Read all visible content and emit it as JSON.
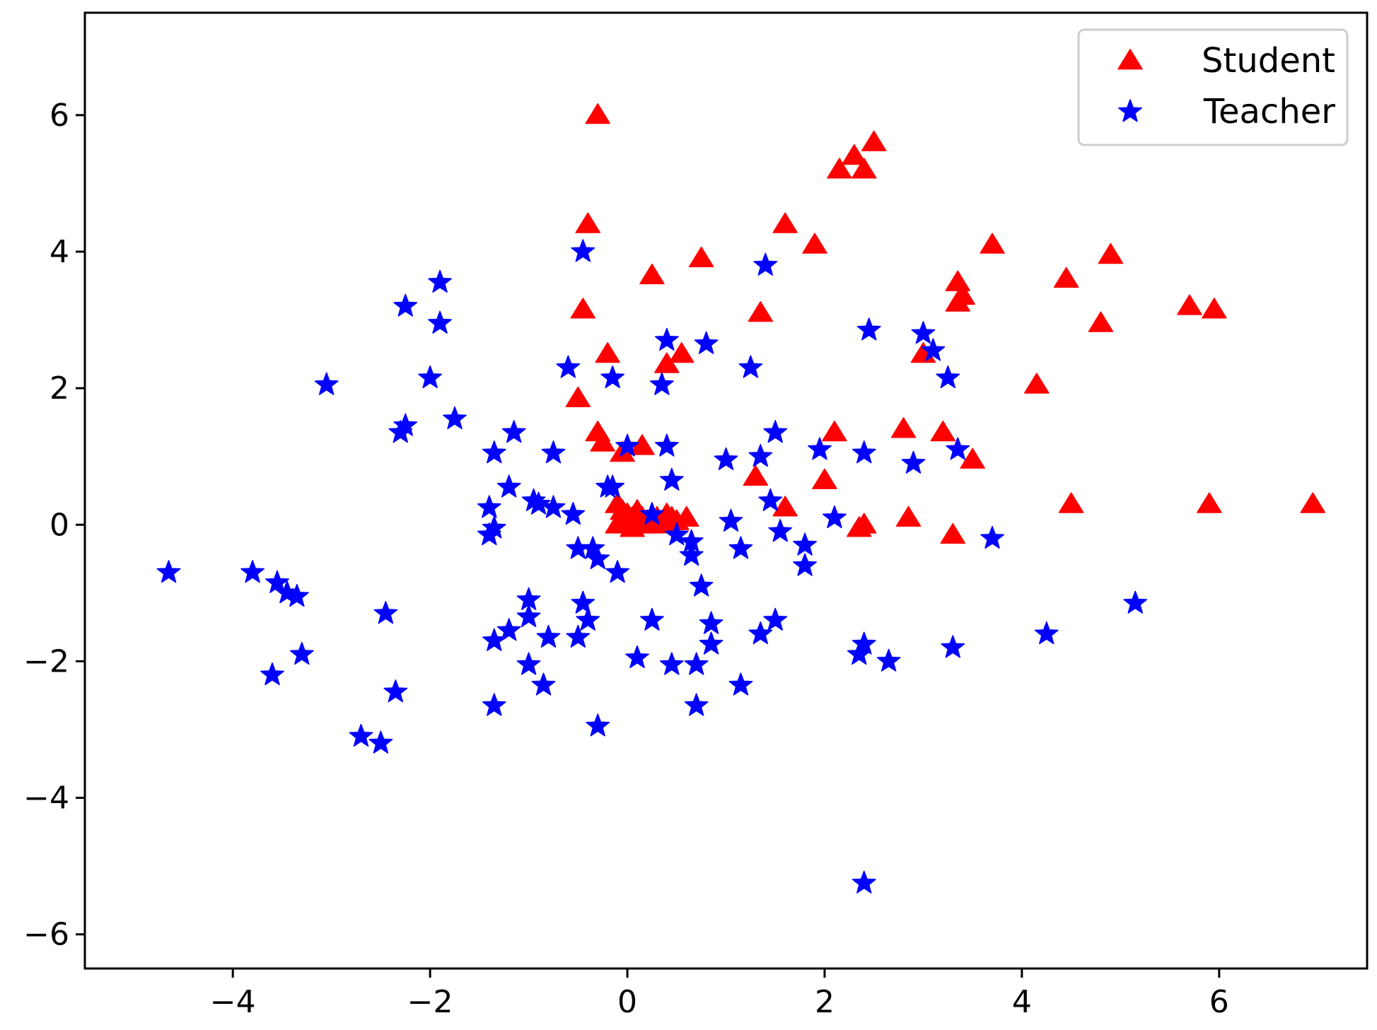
{
  "chart_data": {
    "type": "scatter",
    "title": "",
    "xlabel": "",
    "ylabel": "",
    "xlim": [
      -5.5,
      7.5
    ],
    "ylim": [
      -6.5,
      7.5
    ],
    "xticks": [
      -4,
      -2,
      0,
      2,
      4,
      6
    ],
    "yticks": [
      -6,
      -4,
      -2,
      0,
      2,
      4,
      6
    ],
    "xtick_labels": [
      "−4",
      "−2",
      "0",
      "2",
      "4",
      "6"
    ],
    "ytick_labels": [
      "−6",
      "−4",
      "−2",
      "0",
      "2",
      "4",
      "6"
    ],
    "grid": false,
    "legend_position": "top-right",
    "series": [
      {
        "name": "Student",
        "marker": "triangle",
        "color": "#ff0000",
        "points": [
          [
            -0.3,
            6.0
          ],
          [
            2.5,
            5.6
          ],
          [
            2.3,
            5.4
          ],
          [
            2.4,
            5.2
          ],
          [
            2.15,
            5.2
          ],
          [
            -0.4,
            4.4
          ],
          [
            1.6,
            4.4
          ],
          [
            1.9,
            4.1
          ],
          [
            0.75,
            3.9
          ],
          [
            3.7,
            4.1
          ],
          [
            4.9,
            3.95
          ],
          [
            0.25,
            3.65
          ],
          [
            4.45,
            3.6
          ],
          [
            3.35,
            3.55
          ],
          [
            3.4,
            3.35
          ],
          [
            3.35,
            3.25
          ],
          [
            5.7,
            3.2
          ],
          [
            5.95,
            3.15
          ],
          [
            -0.45,
            3.15
          ],
          [
            1.35,
            3.1
          ],
          [
            4.8,
            2.95
          ],
          [
            -0.2,
            2.5
          ],
          [
            0.55,
            2.5
          ],
          [
            0.4,
            2.35
          ],
          [
            3.0,
            2.5
          ],
          [
            4.15,
            2.05
          ],
          [
            -0.5,
            1.85
          ],
          [
            -0.3,
            1.35
          ],
          [
            -0.25,
            1.2
          ],
          [
            2.1,
            1.35
          ],
          [
            2.8,
            1.4
          ],
          [
            3.2,
            1.35
          ],
          [
            0.15,
            1.15
          ],
          [
            -0.05,
            1.05
          ],
          [
            3.5,
            0.95
          ],
          [
            1.3,
            0.7
          ],
          [
            2.0,
            0.65
          ],
          [
            1.6,
            0.25
          ],
          [
            4.5,
            0.3
          ],
          [
            5.9,
            0.3
          ],
          [
            6.95,
            0.3
          ],
          [
            2.85,
            0.1
          ],
          [
            2.4,
            0.0
          ],
          [
            2.35,
            -0.05
          ],
          [
            3.3,
            -0.15
          ],
          [
            -0.1,
            0.3
          ],
          [
            -0.05,
            0.2
          ],
          [
            0.0,
            0.15
          ],
          [
            0.05,
            0.1
          ],
          [
            0.1,
            0.2
          ],
          [
            0.15,
            0.1
          ],
          [
            0.2,
            0.05
          ],
          [
            0.3,
            0.1
          ],
          [
            0.4,
            0.15
          ],
          [
            0.5,
            0.05
          ],
          [
            0.6,
            0.1
          ],
          [
            -0.1,
            0.0
          ],
          [
            0.0,
            0.0
          ],
          [
            0.05,
            -0.05
          ],
          [
            0.15,
            0.0
          ],
          [
            0.25,
            0.05
          ],
          [
            0.35,
            0.0
          ],
          [
            0.45,
            0.1
          ],
          [
            0.1,
            0.05
          ],
          [
            -0.05,
            0.1
          ]
        ]
      },
      {
        "name": "Teacher",
        "marker": "star",
        "color": "#0000ff",
        "points": [
          [
            -0.45,
            4.0
          ],
          [
            1.4,
            3.8
          ],
          [
            -1.9,
            3.55
          ],
          [
            -2.25,
            3.2
          ],
          [
            -1.9,
            2.95
          ],
          [
            2.45,
            2.85
          ],
          [
            3.0,
            2.8
          ],
          [
            0.4,
            2.7
          ],
          [
            0.8,
            2.65
          ],
          [
            3.1,
            2.55
          ],
          [
            -0.6,
            2.3
          ],
          [
            1.25,
            2.3
          ],
          [
            -2.0,
            2.15
          ],
          [
            -0.15,
            2.15
          ],
          [
            3.25,
            2.15
          ],
          [
            -3.05,
            2.05
          ],
          [
            0.35,
            2.05
          ],
          [
            -1.75,
            1.55
          ],
          [
            -2.25,
            1.45
          ],
          [
            -2.3,
            1.35
          ],
          [
            -1.15,
            1.35
          ],
          [
            1.5,
            1.35
          ],
          [
            0.0,
            1.15
          ],
          [
            0.4,
            1.15
          ],
          [
            3.35,
            1.1
          ],
          [
            1.95,
            1.1
          ],
          [
            2.4,
            1.05
          ],
          [
            -1.35,
            1.05
          ],
          [
            -0.75,
            1.05
          ],
          [
            1.35,
            1.0
          ],
          [
            1.0,
            0.95
          ],
          [
            2.9,
            0.9
          ],
          [
            0.45,
            0.65
          ],
          [
            -0.2,
            0.55
          ],
          [
            -1.2,
            0.55
          ],
          [
            -0.15,
            0.55
          ],
          [
            -0.95,
            0.35
          ],
          [
            1.45,
            0.35
          ],
          [
            -0.9,
            0.3
          ],
          [
            -0.75,
            0.25
          ],
          [
            -1.4,
            0.25
          ],
          [
            0.25,
            0.15
          ],
          [
            -0.55,
            0.15
          ],
          [
            2.1,
            0.1
          ],
          [
            1.05,
            0.05
          ],
          [
            -1.35,
            -0.05
          ],
          [
            -1.4,
            -0.15
          ],
          [
            0.5,
            -0.15
          ],
          [
            1.55,
            -0.1
          ],
          [
            0.65,
            -0.25
          ],
          [
            3.7,
            -0.2
          ],
          [
            1.8,
            -0.3
          ],
          [
            -0.5,
            -0.35
          ],
          [
            -0.35,
            -0.35
          ],
          [
            1.15,
            -0.35
          ],
          [
            0.65,
            -0.45
          ],
          [
            -0.3,
            -0.5
          ],
          [
            1.8,
            -0.6
          ],
          [
            -0.1,
            -0.7
          ],
          [
            -4.65,
            -0.7
          ],
          [
            -3.8,
            -0.7
          ],
          [
            -3.55,
            -0.85
          ],
          [
            -3.45,
            -1.0
          ],
          [
            -3.35,
            -1.05
          ],
          [
            0.75,
            -0.9
          ],
          [
            -1.0,
            -1.1
          ],
          [
            -0.45,
            -1.15
          ],
          [
            5.15,
            -1.15
          ],
          [
            -1.0,
            -1.35
          ],
          [
            -2.45,
            -1.3
          ],
          [
            -0.4,
            -1.4
          ],
          [
            1.5,
            -1.4
          ],
          [
            0.25,
            -1.4
          ],
          [
            0.85,
            -1.45
          ],
          [
            -1.2,
            -1.55
          ],
          [
            -0.5,
            -1.65
          ],
          [
            1.35,
            -1.6
          ],
          [
            -1.35,
            -1.7
          ],
          [
            -0.8,
            -1.65
          ],
          [
            4.25,
            -1.6
          ],
          [
            2.4,
            -1.75
          ],
          [
            0.85,
            -1.75
          ],
          [
            3.3,
            -1.8
          ],
          [
            -3.3,
            -1.9
          ],
          [
            2.35,
            -1.9
          ],
          [
            0.1,
            -1.95
          ],
          [
            2.65,
            -2.0
          ],
          [
            -1.0,
            -2.05
          ],
          [
            0.45,
            -2.05
          ],
          [
            0.7,
            -2.05
          ],
          [
            -3.6,
            -2.2
          ],
          [
            -0.85,
            -2.35
          ],
          [
            1.15,
            -2.35
          ],
          [
            -2.35,
            -2.45
          ],
          [
            -1.35,
            -2.65
          ],
          [
            0.7,
            -2.65
          ],
          [
            -0.3,
            -2.95
          ],
          [
            -2.7,
            -3.1
          ],
          [
            -2.5,
            -3.2
          ],
          [
            2.4,
            -5.25
          ]
        ]
      }
    ]
  }
}
